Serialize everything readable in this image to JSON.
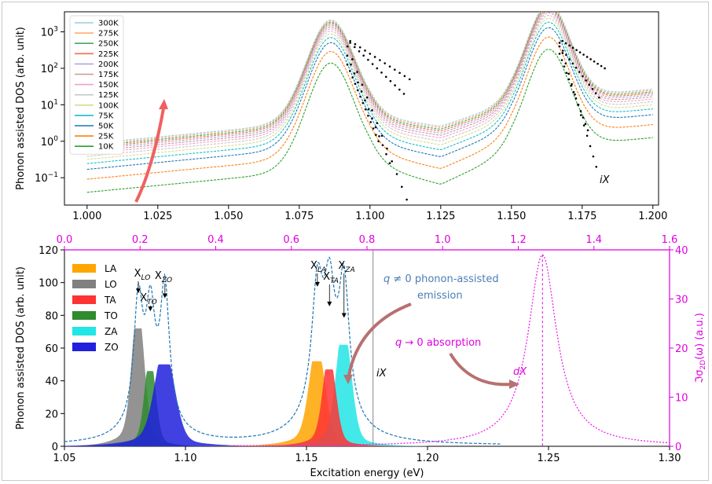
{
  "chart_data": [
    {
      "type": "line",
      "ylabel": "Phonon assisted DOS (arb. unit)",
      "xlim": [
        0.992,
        1.202
      ],
      "ylim_log10": [
        -1.75,
        3.55
      ],
      "yscale": "log",
      "x_ticks": [
        "1.000",
        "1.025",
        "1.050",
        "1.075",
        "1.100",
        "1.125",
        "1.150",
        "1.175",
        "1.200"
      ],
      "y_ticks": [
        {
          "base": "10",
          "exp": "3",
          "v": 3
        },
        {
          "base": "10",
          "exp": "2",
          "v": 2
        },
        {
          "base": "10",
          "exp": "1",
          "v": 1
        },
        {
          "base": "10",
          "exp": "0",
          "v": 0
        },
        {
          "base": "10",
          "exp": "−1",
          "v": -1
        }
      ],
      "legend_position": "upper-left",
      "series": [
        {
          "name": "300K",
          "temperature": 300,
          "color": "#9ecae1"
        },
        {
          "name": "275K",
          "temperature": 275,
          "color": "#fdae6b"
        },
        {
          "name": "250K",
          "temperature": 250,
          "color": "#41ab5d"
        },
        {
          "name": "225K",
          "temperature": 225,
          "color": "#fb6a4a"
        },
        {
          "name": "200K",
          "temperature": 200,
          "color": "#b3a2e0"
        },
        {
          "name": "175K",
          "temperature": 175,
          "color": "#c49c94"
        },
        {
          "name": "150K",
          "temperature": 150,
          "color": "#f29fd0"
        },
        {
          "name": "125K",
          "temperature": 125,
          "color": "#c7c7c7"
        },
        {
          "name": "100K",
          "temperature": 100,
          "color": "#dbdb8d"
        },
        {
          "name": "75K",
          "temperature": 75,
          "color": "#17becf"
        },
        {
          "name": "50K",
          "temperature": 50,
          "color": "#1f77b4"
        },
        {
          "name": "25K",
          "temperature": 25,
          "color": "#ff7f0e"
        },
        {
          "name": "10K",
          "temperature": 10,
          "color": "#2ca02c"
        }
      ],
      "annotations": [
        {
          "text": "iX",
          "x": 1.177,
          "y_log10": -0.9
        }
      ],
      "arrow_color": "#f06060"
    },
    {
      "type": "area",
      "xlabel": "Excitation energy (eV)",
      "ylabel": "Phonon assisted DOS (arb. unit)",
      "xlim": [
        1.05,
        1.3
      ],
      "ylim": [
        0,
        120
      ],
      "x_ticks": [
        "1.05",
        "1.10",
        "1.15",
        "1.20",
        "1.25",
        "1.30"
      ],
      "y_ticks": [
        "0",
        "20",
        "40",
        "60",
        "80",
        "100",
        "120"
      ],
      "top_axis_ticks": [
        "0.0",
        "0.2",
        "0.4",
        "0.6",
        "0.8",
        "1.0",
        "1.2",
        "1.4",
        "1.6"
      ],
      "top_axis_lim": [
        0.0,
        1.6
      ],
      "right_axis_ticks": [
        "0",
        "10",
        "20",
        "30",
        "40"
      ],
      "right_axis_lim": [
        0,
        40
      ],
      "right_ylabel": "ℑσ2D(ω) (a.u.)",
      "legend_position": "upper-left",
      "series": [
        {
          "name": "LA",
          "color": "#ffa500",
          "peaks": [
            [
              1.1545,
              52,
              0.0032
            ]
          ]
        },
        {
          "name": "LO",
          "color": "#808080",
          "peaks": [
            [
              1.0805,
              72,
              0.0025
            ]
          ]
        },
        {
          "name": "TA",
          "color": "#ff3333",
          "peaks": [
            [
              1.1595,
              47,
              0.0026
            ]
          ]
        },
        {
          "name": "TO",
          "color": "#2e8b2e",
          "peaks": [
            [
              1.0855,
              46,
              0.0022
            ]
          ]
        },
        {
          "name": "ZA",
          "color": "#22e5e5",
          "peaks": [
            [
              1.1655,
              62,
              0.003
            ]
          ]
        },
        {
          "name": "ZO",
          "color": "#2020dd",
          "peaks": [
            [
              1.0915,
              50,
              0.004
            ]
          ]
        }
      ],
      "total_peaks_labels": [
        {
          "text": "X",
          "sub": "LO",
          "x": 1.0805
        },
        {
          "text": "X",
          "sub": "TO",
          "x": 1.0855
        },
        {
          "text": "X",
          "sub": "ZO",
          "x": 1.0915
        },
        {
          "text": "X",
          "sub": "LA",
          "x": 1.1545
        },
        {
          "text": "X",
          "sub": "TA",
          "x": 1.1595
        },
        {
          "text": "X",
          "sub": "ZA",
          "x": 1.1655
        }
      ],
      "absorption": {
        "center": 1.2475,
        "peak_right_axis": 39,
        "gamma": 0.0072,
        "color": "#ee22ee",
        "label": "dX"
      },
      "vline": {
        "x": 1.1775,
        "label": "iX"
      },
      "annotations": [
        {
          "text": "q ≠ 0 phonon-assisted emission",
          "color": "#4a7fb5"
        },
        {
          "text": "q → 0 absorption",
          "color": "#e000e0"
        }
      ]
    }
  ],
  "texts": {
    "top_ylabel": "Phonon assisted DOS (arb. unit)",
    "bot_ylabel": "Phonon assisted DOS (arb. unit)",
    "bot_xlabel": "Excitation energy (eV)",
    "right_ylabel_prefix": "ℑσ",
    "right_ylabel_sub": "2D",
    "right_ylabel_suffix": "(ω) (a.u.)",
    "iX_top": "iX",
    "iX_bot": "iX",
    "dX": "dX",
    "emission_line1_pre": "q",
    "emission_line1_post": " ≠ 0 phonon-assisted",
    "emission_line2": "emission",
    "absorption_pre": "q",
    "absorption_post": " → 0 absorption"
  }
}
